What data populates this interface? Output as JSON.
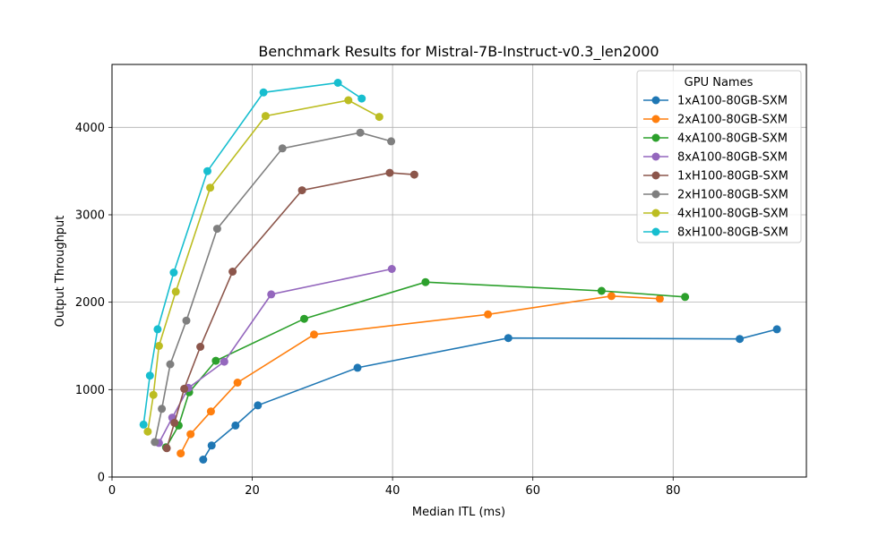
{
  "chart_data": {
    "type": "line",
    "title": "Benchmark Results for Mistral-7B-Instruct-v0.3_len2000",
    "xlabel": "Median ITL (ms)",
    "ylabel": "Output Throughput",
    "xlim": [
      0,
      99
    ],
    "ylim": [
      0,
      4720
    ],
    "xticks": [
      0,
      20,
      40,
      60,
      80
    ],
    "yticks": [
      0,
      1000,
      2000,
      3000,
      4000
    ],
    "grid": true,
    "legend_title": "GPU Names",
    "legend_position": "top-right",
    "series": [
      {
        "name": "1xA100-80GB-SXM",
        "color": "#1f77b4",
        "points": [
          [
            13.0,
            200
          ],
          [
            14.2,
            360
          ],
          [
            17.6,
            590
          ],
          [
            20.8,
            820
          ],
          [
            35.0,
            1250
          ],
          [
            56.5,
            1590
          ],
          [
            89.5,
            1580
          ],
          [
            94.8,
            1690
          ]
        ]
      },
      {
        "name": "2xA100-80GB-SXM",
        "color": "#ff7f0e",
        "points": [
          [
            9.8,
            270
          ],
          [
            11.2,
            490
          ],
          [
            14.1,
            750
          ],
          [
            17.9,
            1080
          ],
          [
            28.8,
            1630
          ],
          [
            53.6,
            1860
          ],
          [
            71.2,
            2070
          ],
          [
            78.1,
            2040
          ]
        ]
      },
      {
        "name": "4xA100-80GB-SXM",
        "color": "#2ca02c",
        "points": [
          [
            7.7,
            340
          ],
          [
            9.5,
            590
          ],
          [
            11.0,
            970
          ],
          [
            14.8,
            1330
          ],
          [
            27.4,
            1810
          ],
          [
            44.7,
            2230
          ],
          [
            69.8,
            2130
          ],
          [
            81.7,
            2060
          ]
        ]
      },
      {
        "name": "8xA100-80GB-SXM",
        "color": "#9467bd",
        "points": [
          [
            6.7,
            390
          ],
          [
            8.6,
            680
          ],
          [
            10.9,
            1020
          ],
          [
            16.0,
            1320
          ],
          [
            22.7,
            2090
          ],
          [
            39.9,
            2380
          ]
        ]
      },
      {
        "name": "1xH100-80GB-SXM",
        "color": "#8c564b",
        "points": [
          [
            7.8,
            330
          ],
          [
            8.9,
            620
          ],
          [
            10.3,
            1010
          ],
          [
            12.6,
            1490
          ],
          [
            17.2,
            2350
          ],
          [
            27.1,
            3280
          ],
          [
            39.6,
            3480
          ],
          [
            43.1,
            3460
          ]
        ]
      },
      {
        "name": "2xH100-80GB-SXM",
        "color": "#7f7f7f",
        "points": [
          [
            6.1,
            400
          ],
          [
            7.1,
            780
          ],
          [
            8.3,
            1290
          ],
          [
            10.6,
            1790
          ],
          [
            15.0,
            2840
          ],
          [
            24.3,
            3760
          ],
          [
            35.4,
            3940
          ],
          [
            39.8,
            3840
          ]
        ]
      },
      {
        "name": "4xH100-80GB-SXM",
        "color": "#bcbd22",
        "points": [
          [
            5.1,
            520
          ],
          [
            5.9,
            940
          ],
          [
            6.7,
            1500
          ],
          [
            9.1,
            2120
          ],
          [
            14.0,
            3310
          ],
          [
            21.9,
            4130
          ],
          [
            33.7,
            4310
          ],
          [
            38.1,
            4120
          ]
        ]
      },
      {
        "name": "8xH100-80GB-SXM",
        "color": "#17becf",
        "points": [
          [
            4.5,
            600
          ],
          [
            5.4,
            1160
          ],
          [
            6.5,
            1690
          ],
          [
            8.8,
            2340
          ],
          [
            13.6,
            3500
          ],
          [
            21.6,
            4400
          ],
          [
            32.2,
            4510
          ],
          [
            35.6,
            4330
          ]
        ]
      }
    ]
  }
}
